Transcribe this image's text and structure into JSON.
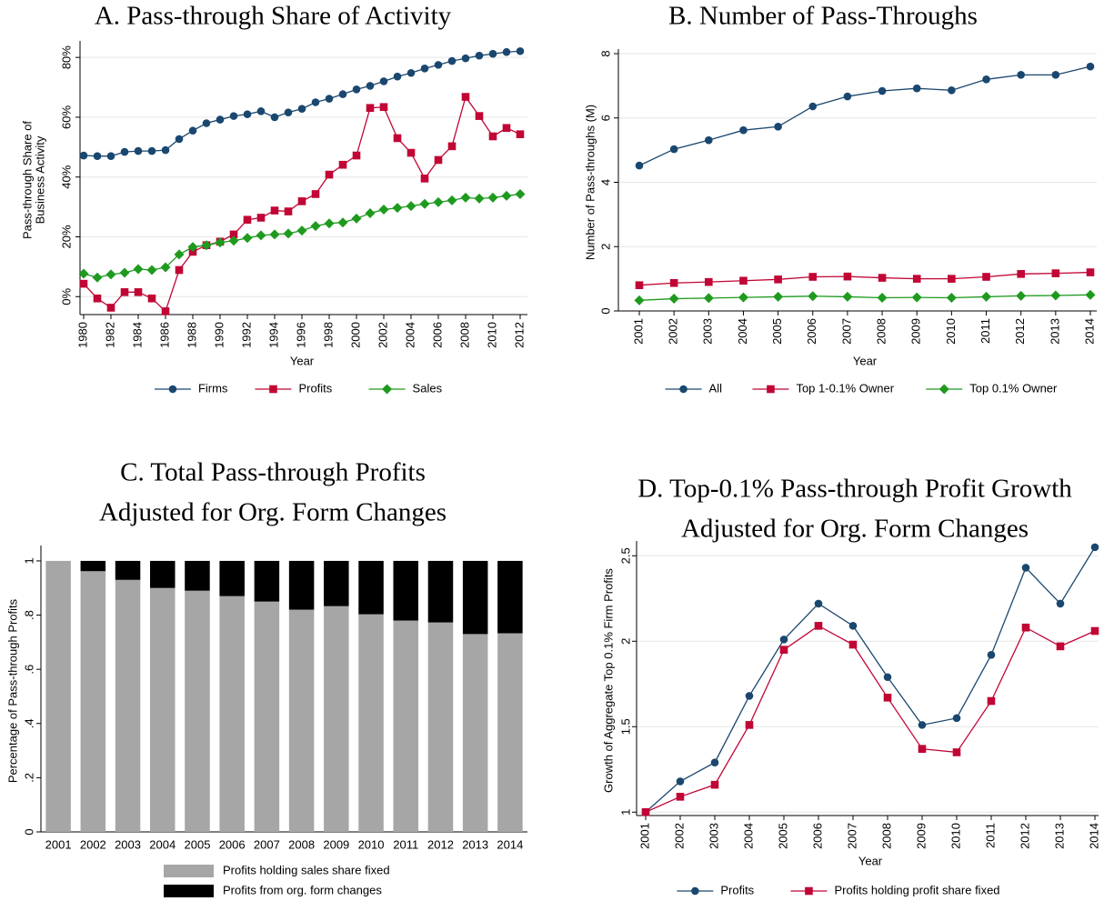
{
  "chart_data": [
    {
      "type": "line",
      "title": [
        "A. Pass-through Share of Activity"
      ],
      "xlabel": "Year",
      "ylabel": [
        "Pass-through Share of",
        "Business Activity"
      ],
      "x": [
        1980,
        1981,
        1982,
        1983,
        1984,
        1985,
        1986,
        1987,
        1988,
        1989,
        1990,
        1991,
        1992,
        1993,
        1994,
        1995,
        1996,
        1997,
        1998,
        1999,
        2000,
        2001,
        2002,
        2003,
        2004,
        2005,
        2006,
        2007,
        2008,
        2009,
        2010,
        2011,
        2012
      ],
      "xlim": [
        1980,
        2012
      ],
      "xticks": [
        1980,
        1982,
        1984,
        1986,
        1988,
        1990,
        1992,
        1994,
        1996,
        1998,
        2000,
        2002,
        2004,
        2006,
        2008,
        2010,
        2012
      ],
      "ylim": [
        -6,
        84
      ],
      "yticks": [
        {
          "value": 0,
          "label": "0%"
        },
        {
          "value": 20,
          "label": "20%"
        },
        {
          "value": 40,
          "label": "40%"
        },
        {
          "value": 60,
          "label": "60%"
        },
        {
          "value": 80,
          "label": "80%"
        }
      ],
      "grid": true,
      "series": [
        {
          "name": "Firms",
          "color": "#1a476f",
          "marker": "circle",
          "values": [
            47.2,
            47,
            47,
            48.4,
            48.7,
            48.7,
            49,
            52.7,
            55.5,
            58,
            59.2,
            60.4,
            61,
            62,
            60,
            61.6,
            62.8,
            65,
            66.2,
            67.7,
            69.3,
            70.5,
            72,
            73.6,
            74.8,
            76.3,
            77.5,
            78.8,
            79.7,
            80.6,
            81.2,
            81.8,
            82.1
          ]
        },
        {
          "name": "Profits",
          "color": "#c10534",
          "marker": "square",
          "values": [
            4.3,
            -0.6,
            -3.7,
            1.5,
            1.5,
            -0.6,
            -4.9,
            8.9,
            15,
            17.2,
            18.4,
            20.8,
            25.7,
            26.4,
            28.8,
            28.5,
            31.9,
            34.3,
            40.8,
            44.1,
            47.2,
            63.1,
            63.4,
            53,
            48.1,
            39.5,
            45.7,
            50.3,
            66.8,
            60.4,
            53.6,
            56.4,
            54.3
          ]
        },
        {
          "name": "Sales",
          "color": "#1e9a1e",
          "marker": "diamond",
          "values": [
            7.7,
            6.4,
            7.4,
            8,
            9.2,
            8.9,
            9.8,
            14.1,
            16.6,
            17.2,
            18.1,
            18.7,
            19.6,
            20.5,
            20.8,
            21.1,
            22.1,
            23.6,
            24.5,
            24.8,
            26.1,
            27.9,
            29.1,
            29.7,
            30.3,
            31,
            31.6,
            32.2,
            33.1,
            32.8,
            33.1,
            33.7,
            34.3
          ]
        }
      ]
    },
    {
      "type": "line",
      "title": [
        "B. Number of Pass-Throughs"
      ],
      "xlabel": "Year",
      "ylabel": [
        "Number of Pass-throughs (M)"
      ],
      "x": [
        2001,
        2002,
        2003,
        2004,
        2005,
        2006,
        2007,
        2008,
        2009,
        2010,
        2011,
        2012,
        2013,
        2014
      ],
      "xlim": [
        2001,
        2014
      ],
      "xticks": [
        2001,
        2002,
        2003,
        2004,
        2005,
        2006,
        2007,
        2008,
        2009,
        2010,
        2011,
        2012,
        2013,
        2014
      ],
      "ylim": [
        0,
        8
      ],
      "yticks": [
        0,
        2,
        4,
        6,
        8
      ],
      "grid": true,
      "series": [
        {
          "name": "All",
          "color": "#1a476f",
          "marker": "circle",
          "values": [
            4.52,
            5.03,
            5.31,
            5.62,
            5.73,
            6.36,
            6.67,
            6.84,
            6.92,
            6.86,
            7.2,
            7.34,
            7.34,
            7.6
          ]
        },
        {
          "name": "Top 1-0.1% Owner",
          "color": "#c10534",
          "marker": "square",
          "values": [
            0.8,
            0.87,
            0.9,
            0.94,
            0.98,
            1.06,
            1.07,
            1.03,
            1.0,
            1.0,
            1.06,
            1.15,
            1.17,
            1.2
          ]
        },
        {
          "name": "Top 0.1% Owner",
          "color": "#1e9a1e",
          "marker": "diamond",
          "values": [
            0.33,
            0.38,
            0.4,
            0.42,
            0.44,
            0.46,
            0.44,
            0.41,
            0.42,
            0.41,
            0.44,
            0.47,
            0.48,
            0.5
          ]
        }
      ]
    },
    {
      "type": "bar",
      "stacked": true,
      "title": [
        "C. Total Pass-through Profits",
        "Adjusted for Org. Form Changes"
      ],
      "ylabel": [
        "Percentage of Pass-through Profits"
      ],
      "categories": [
        "2001",
        "2002",
        "2003",
        "2004",
        "2005",
        "2006",
        "2007",
        "2008",
        "2009",
        "2010",
        "2011",
        "2012",
        "2013",
        "2014"
      ],
      "ylim": [
        0,
        1.04
      ],
      "yticks": [
        0,
        {
          "value": 0.2,
          "label": ".2"
        },
        {
          "value": 0.4,
          "label": ".4"
        },
        {
          "value": 0.6,
          "label": ".6"
        },
        {
          "value": 0.8,
          "label": ".8"
        },
        1
      ],
      "grid": false,
      "series": [
        {
          "name": "Profits holding sales share fixed",
          "color": "#a6a6a6",
          "values": [
            1,
            0.962,
            0.93,
            0.9,
            0.89,
            0.87,
            0.85,
            0.82,
            0.833,
            0.803,
            0.78,
            0.773,
            0.73,
            0.733
          ]
        },
        {
          "name": "Profits from org. form changes",
          "color": "#000000",
          "values": [
            0,
            0.038,
            0.07,
            0.1,
            0.11,
            0.13,
            0.15,
            0.18,
            0.167,
            0.197,
            0.22,
            0.227,
            0.27,
            0.267
          ]
        }
      ]
    },
    {
      "type": "line",
      "title": [
        "D. Top-0.1% Pass-through Profit Growth",
        "Adjusted for Org. Form Changes"
      ],
      "xlabel": "Year",
      "ylabel": [
        "Growth of Aggregate Top 0.1% Firm Profits"
      ],
      "x": [
        2001,
        2002,
        2003,
        2004,
        2005,
        2006,
        2007,
        2008,
        2009,
        2010,
        2011,
        2012,
        2013,
        2014
      ],
      "xlim": [
        2001,
        2014
      ],
      "xticks": [
        2001,
        2002,
        2003,
        2004,
        2005,
        2006,
        2007,
        2008,
        2009,
        2010,
        2011,
        2012,
        2013,
        2014
      ],
      "ylim": [
        0.98,
        2.56
      ],
      "yticks": [
        1,
        1.5,
        2,
        2.5
      ],
      "grid": true,
      "series": [
        {
          "name": "Profits",
          "color": "#1a476f",
          "marker": "circle",
          "values": [
            1.0,
            1.18,
            1.29,
            1.68,
            2.01,
            2.22,
            2.09,
            1.79,
            1.51,
            1.55,
            1.92,
            2.43,
            2.22,
            2.55
          ]
        },
        {
          "name": "Profits holding profit share fixed",
          "color": "#c10534",
          "marker": "square",
          "values": [
            1.0,
            1.09,
            1.16,
            1.51,
            1.95,
            2.09,
            1.98,
            1.67,
            1.37,
            1.35,
            1.65,
            2.08,
            1.97,
            2.06
          ]
        }
      ]
    }
  ]
}
